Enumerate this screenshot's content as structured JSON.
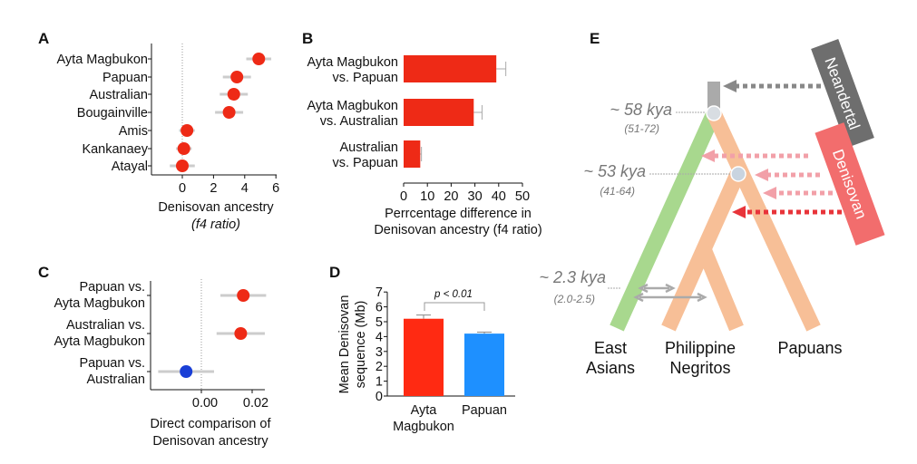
{
  "chart_data": [
    {
      "panel": "A",
      "type": "scatter",
      "xlabel": "Denisovan ancestry",
      "xlabel2": "(f4 ratio)",
      "xlim": [
        -1.9,
        6.2
      ],
      "xticks": [
        0,
        2,
        4,
        6
      ],
      "categories": [
        "Ayta Magbukon",
        "Papuan",
        "Australian",
        "Bougainville",
        "Amis",
        "Kankanaey",
        "Atayal"
      ],
      "values": [
        4.9,
        3.5,
        3.3,
        3.0,
        0.3,
        0.1,
        0.0
      ],
      "errors": [
        0.8,
        0.9,
        0.9,
        0.9,
        0.5,
        0.5,
        0.8
      ],
      "color": "#ee2a16"
    },
    {
      "panel": "B",
      "type": "bar",
      "xlabel": "Perrcentage difference in",
      "xlabel2": "Denisovan ancestry (f4 ratio)",
      "xlim": [
        0,
        50
      ],
      "xticks": [
        0,
        10,
        20,
        30,
        40,
        50
      ],
      "categories": [
        [
          "Ayta Magbukon",
          "vs. Papuan"
        ],
        [
          "Ayta Magbukon",
          "vs. Australian"
        ],
        [
          "Australian",
          "vs. Papuan"
        ]
      ],
      "values": [
        39,
        29.5,
        7
      ],
      "errors": [
        4,
        3.5,
        0.5
      ],
      "color": "#ee2a16"
    },
    {
      "panel": "C",
      "type": "scatter",
      "xlabel": "Direct comparison of",
      "xlabel2": "Denisovan ancestry",
      "xlim": [
        -0.022,
        0.03
      ],
      "xticks": [
        "0.00",
        "0.02"
      ],
      "xtick_values": [
        0.0,
        0.02
      ],
      "categories": [
        [
          "Papuan vs.",
          "Ayta Magbukon"
        ],
        [
          "Australian vs.",
          "Ayta Magbukon"
        ],
        [
          "Papuan vs.",
          "Australian"
        ]
      ],
      "values": [
        0.0165,
        0.0155,
        -0.006
      ],
      "errors": [
        0.009,
        0.0095,
        0.011
      ],
      "colors": [
        "#ee2a16",
        "#ee2a16",
        "#1a3fd6"
      ]
    },
    {
      "panel": "D",
      "type": "bar",
      "ylabel": "Mean Denisovan",
      "ylabel2": "sequence (Mb)",
      "ylim": [
        0,
        7
      ],
      "yticks": [
        0,
        1,
        2,
        3,
        4,
        5,
        6,
        7
      ],
      "categories": [
        [
          "Ayta",
          "Magbukon"
        ],
        [
          "Papuan",
          ""
        ]
      ],
      "values": [
        5.2,
        4.2
      ],
      "errors": [
        0.25,
        0.1
      ],
      "colors": [
        "#ff2a12",
        "#1e90ff"
      ],
      "annotation": "p < 0.01"
    }
  ],
  "panel_labels": {
    "a": "A",
    "b": "B",
    "c": "C",
    "d": "D",
    "e": "E"
  },
  "tree": {
    "nodes": [
      {
        "time": "~ 58 kya",
        "range": "(51-72)"
      },
      {
        "time": "~ 53 kya",
        "range": "(41-64)"
      },
      {
        "time": "~ 2.3 kya",
        "range": "(2.0-2.5)"
      }
    ],
    "leaves": [
      [
        "East",
        "Asians"
      ],
      [
        "Philippine",
        "Negritos"
      ],
      [
        "Papuans",
        ""
      ]
    ],
    "archaic": {
      "neandertal": "Neandertal",
      "denisovan": "Denisovan"
    },
    "colors": {
      "east_asian": "#a8d88e",
      "oceanian": "#f7bf97",
      "neandertal": "#6e6e6e",
      "denisovan": "#f26d6d",
      "stem": "#aaaaaa"
    }
  }
}
